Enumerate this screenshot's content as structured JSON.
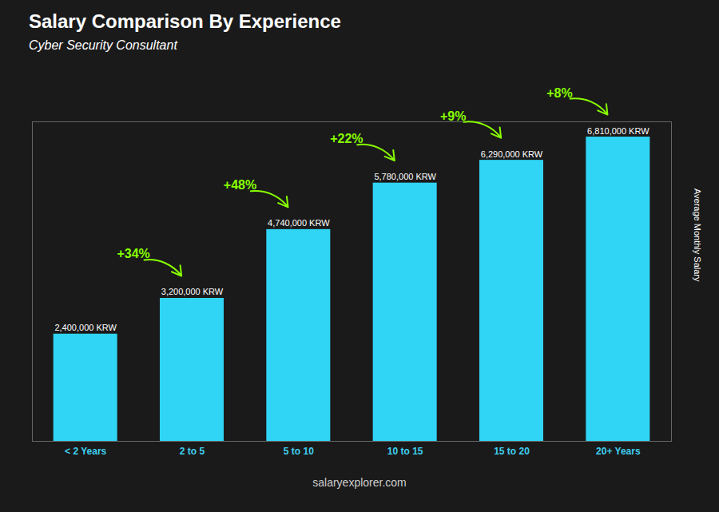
{
  "chart_data": {
    "type": "bar",
    "title": "Salary Comparison By Experience",
    "subtitle": "Cyber Security Consultant",
    "ylabel": "Average Monthly Salary",
    "categories": [
      "< 2 Years",
      "2 to 5",
      "5 to 10",
      "10 to 15",
      "15 to 20",
      "20+ Years"
    ],
    "values": [
      2400000,
      3200000,
      4740000,
      5780000,
      6290000,
      6810000
    ],
    "value_labels": [
      "2,400,000 KRW",
      "3,200,000 KRW",
      "4,740,000 KRW",
      "5,780,000 KRW",
      "6,290,000 KRW",
      "6,810,000 KRW"
    ],
    "data_labels": true,
    "color": "#30d5f5",
    "ylim": [
      0,
      7150500
    ],
    "tick_labels": "x",
    "annotations": [
      {
        "text": "+34%",
        "color": "#88ff00"
      },
      {
        "text": "+48%",
        "color": "#88ff00"
      },
      {
        "text": "+22%",
        "color": "#88ff00"
      },
      {
        "text": "+9%",
        "color": "#88ff00"
      },
      {
        "text": "+8%",
        "color": "#88ff00"
      }
    ],
    "source": "salaryexplorer.com"
  }
}
